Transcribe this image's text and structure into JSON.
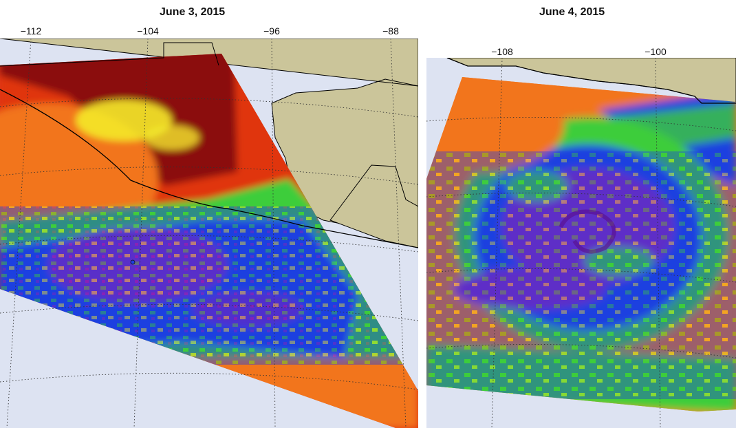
{
  "left_panel": {
    "title": "June 3, 2015",
    "lon_ticks": [
      "−112",
      "−104",
      "−96",
      "−88"
    ]
  },
  "right_panel": {
    "title": "June 4, 2015",
    "lon_ticks": [
      "−108",
      "−100"
    ]
  },
  "colors": {
    "ocean": "#dde3f2",
    "land": "#cbc59a",
    "grid": "#333333",
    "swath_cold": "#8b0a0f",
    "swath_red": "#e03510",
    "swath_orange": "#f2751a",
    "yellow": "#f4ea2a",
    "green": "#3ccd3a",
    "blue": "#1d3fe0",
    "purple": "#8a20b6"
  },
  "icons": [
    "hurricane-eye-icon"
  ]
}
